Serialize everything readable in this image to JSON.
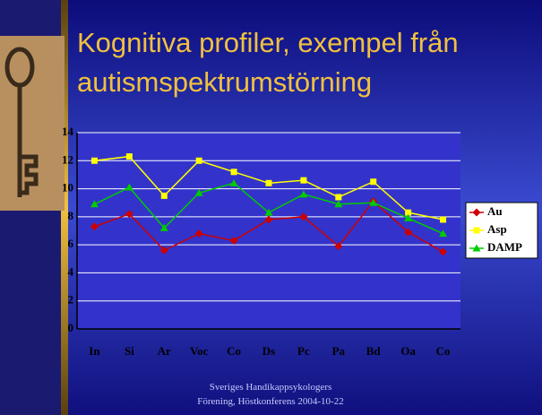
{
  "slide": {
    "title_lines": [
      "Kognitiva profiler, exempel från",
      "autismspektrumstörning"
    ],
    "footer_lines": [
      "Sveriges Handikappsykologers",
      "Förening,  Höstkonferens 2004-10-22"
    ]
  },
  "chart_data": {
    "type": "line",
    "categories": [
      "In",
      "Si",
      "Ar",
      "Voc",
      "Co",
      "Ds",
      "Pc",
      "Pa",
      "Bd",
      "Oa",
      "Co"
    ],
    "series": [
      {
        "name": "Au",
        "color": "#cc0000",
        "marker": "diamond",
        "values": [
          7.3,
          8.2,
          5.6,
          6.8,
          6.3,
          7.8,
          8.0,
          5.9,
          9.1,
          6.9,
          5.5
        ]
      },
      {
        "name": "Asp",
        "color": "#ffff00",
        "marker": "square",
        "values": [
          12.0,
          12.3,
          9.5,
          12.0,
          11.2,
          10.4,
          10.6,
          9.4,
          10.5,
          8.3,
          7.8
        ]
      },
      {
        "name": "DAMP",
        "color": "#00cc00",
        "marker": "triangle",
        "values": [
          8.9,
          10.1,
          7.2,
          9.7,
          10.4,
          8.3,
          9.6,
          8.9,
          9.0,
          7.9,
          6.8
        ]
      }
    ],
    "ylim": [
      0,
      14
    ],
    "yticks": [
      0,
      2,
      4,
      6,
      8,
      10,
      12,
      14
    ],
    "grid": true,
    "legend": "right"
  }
}
